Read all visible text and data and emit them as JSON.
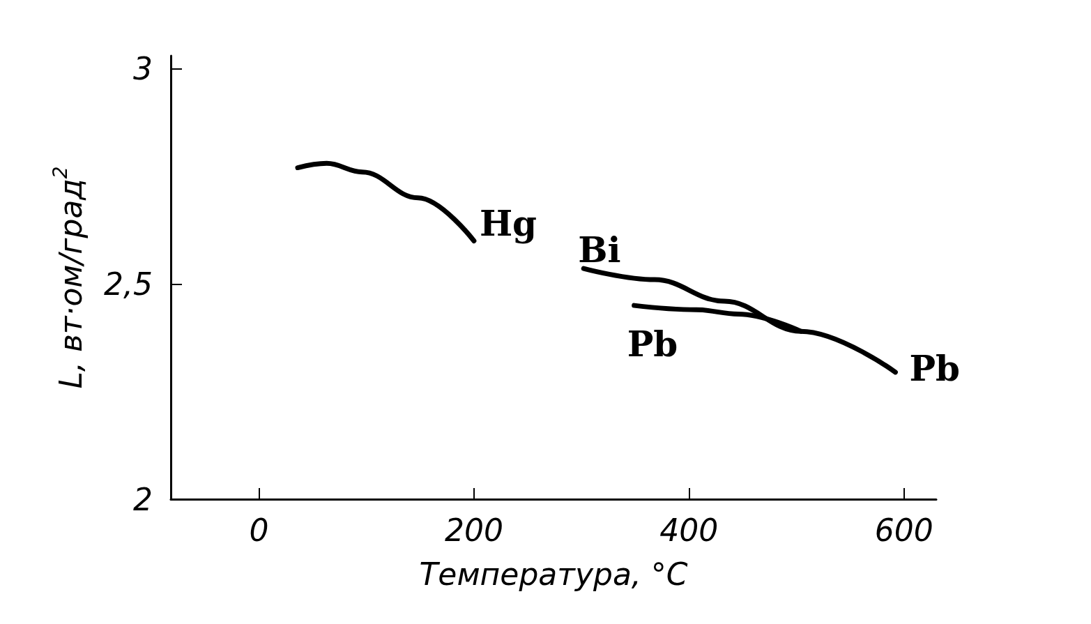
{
  "chart_data": {
    "type": "line",
    "xlabel": "Температура, °C",
    "ylabel": "L, вт·ом/град$^{2}$",
    "xlim": [
      -82,
      630
    ],
    "xticks": [
      0,
      200,
      400,
      600
    ],
    "ylim": [
      2,
      3.03
    ],
    "yticks": [
      2,
      {
        "value": 2.5,
        "label": "2,5"
      },
      3
    ],
    "marker": "none",
    "line_style": "solid",
    "series": [
      {
        "color": "#000000",
        "x": [
          36,
          63,
          96,
          148,
          200
        ],
        "values": [
          2.77,
          2.78,
          2.76,
          2.7,
          2.6
        ]
      },
      {
        "color": "#000000",
        "x": [
          302,
          368,
          433,
          504,
          592
        ],
        "values": [
          2.536,
          2.51,
          2.46,
          2.39,
          2.295
        ]
      },
      {
        "color": "#000000",
        "x": [
          349,
          407,
          446,
          504
        ],
        "values": [
          2.45,
          2.44,
          2.43,
          2.39
        ]
      }
    ],
    "annotations": [
      {
        "text": "Hg",
        "x": 200,
        "y": 2.6
      },
      {
        "text": "Bi",
        "x": 302,
        "y": 2.536
      },
      {
        "text": "Pb",
        "x": 349,
        "y": 2.45
      },
      {
        "text": "Pb",
        "x": 592,
        "y": 2.295
      }
    ]
  }
}
